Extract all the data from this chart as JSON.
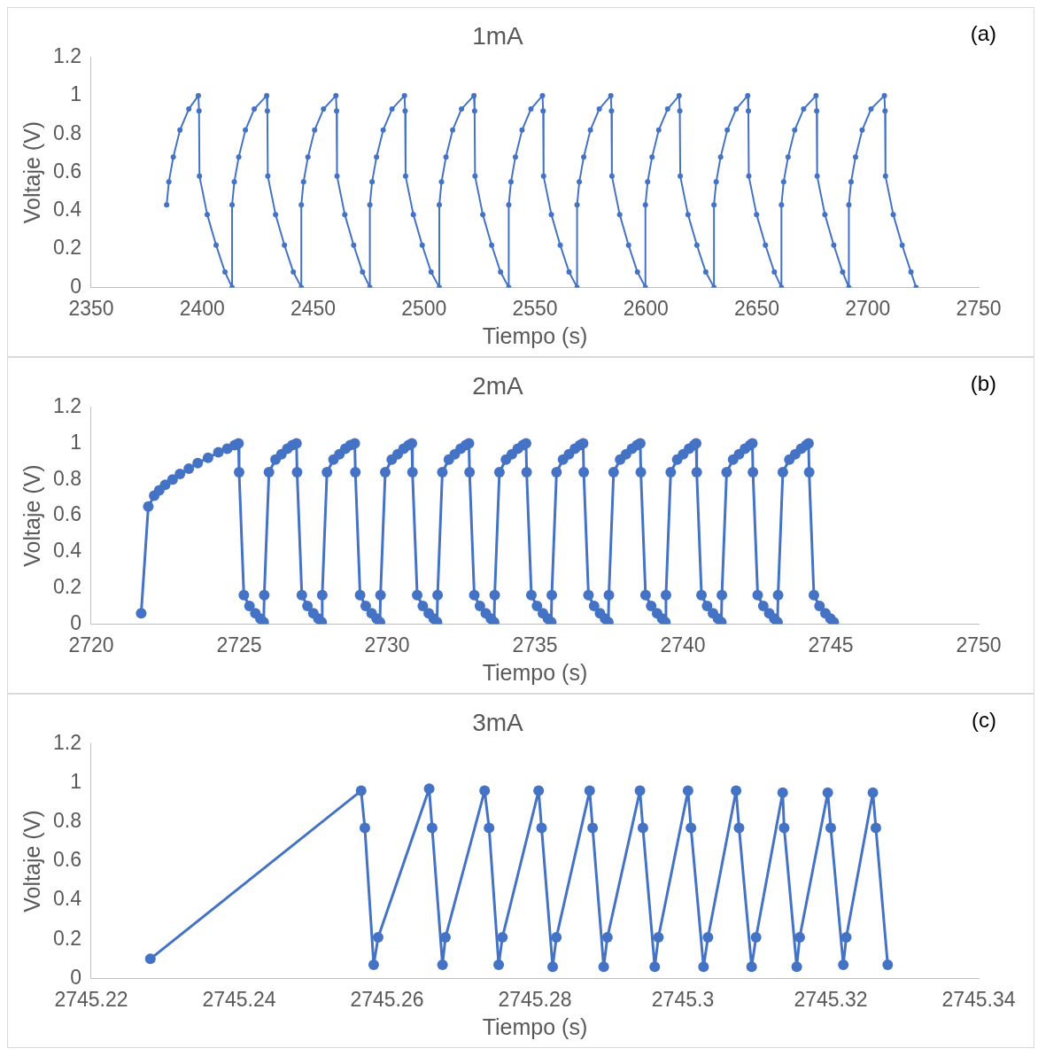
{
  "chart_data": [
    {
      "type": "line",
      "title": "1mA",
      "xlabel": "Tiempo (s)",
      "ylabel": "Voltaje (V)",
      "annotations": [
        "(a)"
      ],
      "marker": "circle",
      "line_style": "solid",
      "legend": false,
      "xlim": [
        2350,
        2750
      ],
      "xticks": [
        2350,
        2400,
        2450,
        2500,
        2550,
        2600,
        2650,
        2700,
        2750
      ],
      "ylim": [
        0,
        1.2
      ],
      "yticks": [
        0,
        0.2,
        0.4,
        0.6,
        0.8,
        1,
        1.2
      ],
      "series": [
        {
          "color": "#4472c4",
          "x": [
            2384,
            2385,
            2387,
            2390,
            2394,
            2398.3,
            2398.6,
            2398.8,
            2402.3,
            2406.3,
            2410.3,
            2413.5,
            2413.5,
            2414.5,
            2416.5,
            2419.5,
            2423.5,
            2429.1,
            2429.4,
            2429.6,
            2433.1,
            2437.1,
            2441.1,
            2444.7,
            2444.7,
            2445.7,
            2447.7,
            2450.7,
            2454.7,
            2460.3,
            2460.6,
            2460.8,
            2464.3,
            2468.3,
            2472.3,
            2475.6,
            2475.6,
            2476.6,
            2478.6,
            2481.6,
            2485.6,
            2491.2,
            2491.5,
            2491.7,
            2495.2,
            2499.2,
            2503.2,
            2506.9,
            2506.9,
            2507.9,
            2509.9,
            2512.9,
            2516.9,
            2522.5,
            2522.8,
            2523.0,
            2526.5,
            2530.5,
            2534.5,
            2538.2,
            2538.2,
            2539.2,
            2541.2,
            2544.2,
            2548.2,
            2553.4,
            2553.7,
            2553.9,
            2557.4,
            2561.4,
            2565.4,
            2569.0,
            2569.0,
            2570.0,
            2572.0,
            2575.0,
            2579.0,
            2584.2,
            2584.5,
            2584.7,
            2588.2,
            2592.2,
            2596.2,
            2599.8,
            2599.8,
            2600.8,
            2602.8,
            2605.8,
            2609.8,
            2615.0,
            2615.3,
            2615.5,
            2619.0,
            2623.0,
            2627.0,
            2630.7,
            2630.7,
            2631.7,
            2633.7,
            2636.7,
            2640.7,
            2645.9,
            2646.2,
            2646.4,
            2649.9,
            2653.9,
            2657.9,
            2661.1,
            2661.1,
            2662.1,
            2664.1,
            2667.1,
            2671.1,
            2676.7,
            2677.0,
            2677.2,
            2680.7,
            2684.7,
            2688.7,
            2691.5,
            2691.5,
            2692.5,
            2694.5,
            2697.5,
            2701.5,
            2707.5,
            2707.8,
            2708.0,
            2711.5,
            2715.5,
            2719.5,
            2721.8
          ],
          "values": [
            0.43,
            0.55,
            0.68,
            0.82,
            0.93,
            1,
            0.92,
            0.58,
            0.38,
            0.22,
            0.08,
            0,
            0.43,
            0.55,
            0.68,
            0.82,
            0.93,
            1,
            0.92,
            0.58,
            0.38,
            0.22,
            0.08,
            0,
            0.43,
            0.55,
            0.68,
            0.82,
            0.93,
            1,
            0.92,
            0.58,
            0.38,
            0.22,
            0.08,
            0,
            0.43,
            0.55,
            0.68,
            0.82,
            0.93,
            1,
            0.92,
            0.58,
            0.38,
            0.22,
            0.08,
            0,
            0.43,
            0.55,
            0.68,
            0.82,
            0.93,
            1,
            0.92,
            0.58,
            0.38,
            0.22,
            0.08,
            0,
            0.43,
            0.55,
            0.68,
            0.82,
            0.93,
            1,
            0.92,
            0.58,
            0.38,
            0.22,
            0.08,
            0,
            0.43,
            0.55,
            0.68,
            0.82,
            0.93,
            1,
            0.92,
            0.58,
            0.38,
            0.22,
            0.08,
            0,
            0.43,
            0.55,
            0.68,
            0.82,
            0.93,
            1,
            0.92,
            0.58,
            0.38,
            0.22,
            0.08,
            0,
            0.43,
            0.55,
            0.68,
            0.82,
            0.93,
            1,
            0.92,
            0.58,
            0.38,
            0.22,
            0.08,
            0,
            0.43,
            0.55,
            0.68,
            0.82,
            0.93,
            1,
            0.92,
            0.58,
            0.38,
            0.22,
            0.08,
            0,
            0.43,
            0.55,
            0.68,
            0.82,
            0.93,
            1,
            0.92,
            0.58,
            0.38,
            0.22,
            0.08,
            0
          ]
        }
      ]
    },
    {
      "type": "line",
      "title": "2mA",
      "xlabel": "Tiempo (s)",
      "ylabel": "Voltaje (V)",
      "annotations": [
        "(b)"
      ],
      "marker": "circle",
      "line_style": "solid",
      "legend": false,
      "xlim": [
        2720,
        2750
      ],
      "xticks": [
        2720,
        2725,
        2730,
        2735,
        2740,
        2745,
        2750
      ],
      "ylim": [
        0,
        1.2
      ],
      "yticks": [
        0,
        0.2,
        0.4,
        0.6,
        0.8,
        1,
        1.2
      ],
      "series": [
        {
          "color": "#4472c4",
          "x": [
            2721.69,
            2721.93,
            2722.13,
            2722.3,
            2722.5,
            2722.75,
            2723.0,
            2723.3,
            2723.6,
            2723.95,
            2724.3,
            2724.6,
            2724.85,
            2724.98,
            2725.0,
            2725.16,
            2725.35,
            2725.55,
            2725.72,
            2725.83,
            2725.85,
            2726.01,
            2726.23,
            2726.43,
            2726.63,
            2726.8,
            2726.94,
            2726.96,
            2727.12,
            2727.31,
            2727.51,
            2727.68,
            2727.79,
            2727.81,
            2727.97,
            2728.19,
            2728.39,
            2728.59,
            2728.76,
            2728.91,
            2728.93,
            2729.09,
            2729.28,
            2729.48,
            2729.65,
            2729.76,
            2729.78,
            2729.94,
            2730.16,
            2730.36,
            2730.56,
            2730.73,
            2730.84,
            2730.86,
            2731.02,
            2731.21,
            2731.41,
            2731.58,
            2731.69,
            2731.71,
            2731.87,
            2732.09,
            2732.29,
            2732.49,
            2732.66,
            2732.77,
            2732.79,
            2732.95,
            2733.14,
            2733.34,
            2733.51,
            2733.62,
            2733.64,
            2733.8,
            2734.02,
            2734.22,
            2734.42,
            2734.59,
            2734.7,
            2734.72,
            2734.88,
            2735.07,
            2735.27,
            2735.44,
            2735.55,
            2735.57,
            2735.73,
            2735.95,
            2736.15,
            2736.35,
            2736.52,
            2736.63,
            2736.65,
            2736.81,
            2737.0,
            2737.2,
            2737.37,
            2737.48,
            2737.5,
            2737.66,
            2737.88,
            2738.08,
            2738.28,
            2738.45,
            2738.56,
            2738.58,
            2738.74,
            2738.93,
            2739.13,
            2739.3,
            2739.41,
            2739.43,
            2739.59,
            2739.81,
            2740.01,
            2740.21,
            2740.38,
            2740.45,
            2740.47,
            2740.63,
            2740.82,
            2741.02,
            2741.19,
            2741.3,
            2741.32,
            2741.48,
            2741.7,
            2741.9,
            2742.1,
            2742.27,
            2742.35,
            2742.37,
            2742.53,
            2742.72,
            2742.92,
            2743.09,
            2743.2,
            2743.22,
            2743.38,
            2743.6,
            2743.8,
            2744.0,
            2744.17,
            2744.25,
            2744.27,
            2744.43,
            2744.62,
            2744.82,
            2744.99,
            2745.1
          ],
          "values": [
            0.06,
            0.65,
            0.71,
            0.74,
            0.77,
            0.8,
            0.83,
            0.86,
            0.89,
            0.92,
            0.95,
            0.97,
            0.99,
            1,
            0.84,
            0.16,
            0.1,
            0.06,
            0.03,
            0.01,
            0.16,
            0.84,
            0.91,
            0.94,
            0.97,
            0.99,
            1,
            0.84,
            0.16,
            0.1,
            0.06,
            0.03,
            0.01,
            0.16,
            0.84,
            0.91,
            0.94,
            0.97,
            0.99,
            1,
            0.84,
            0.16,
            0.1,
            0.06,
            0.03,
            0.01,
            0.16,
            0.84,
            0.91,
            0.94,
            0.97,
            0.99,
            1,
            0.84,
            0.16,
            0.1,
            0.06,
            0.03,
            0.01,
            0.16,
            0.84,
            0.91,
            0.94,
            0.97,
            0.99,
            1,
            0.84,
            0.16,
            0.1,
            0.06,
            0.03,
            0.01,
            0.16,
            0.84,
            0.91,
            0.94,
            0.97,
            0.99,
            1,
            0.84,
            0.16,
            0.1,
            0.06,
            0.03,
            0.01,
            0.16,
            0.84,
            0.91,
            0.94,
            0.97,
            0.99,
            1,
            0.84,
            0.16,
            0.1,
            0.06,
            0.03,
            0.01,
            0.16,
            0.84,
            0.91,
            0.94,
            0.97,
            0.99,
            1,
            0.84,
            0.16,
            0.1,
            0.06,
            0.03,
            0.01,
            0.16,
            0.84,
            0.91,
            0.94,
            0.97,
            0.99,
            1,
            0.84,
            0.16,
            0.1,
            0.06,
            0.03,
            0.01,
            0.16,
            0.84,
            0.91,
            0.94,
            0.97,
            0.99,
            1,
            0.84,
            0.16,
            0.1,
            0.06,
            0.03,
            0.01,
            0.16,
            0.84,
            0.91,
            0.94,
            0.97,
            0.99,
            1,
            0.84,
            0.16,
            0.1,
            0.06,
            0.03,
            0.01
          ]
        }
      ]
    },
    {
      "type": "line",
      "title": "3mA",
      "xlabel": "Tiempo (s)",
      "ylabel": "Voltaje (V)",
      "annotations": [
        "(c)"
      ],
      "marker": "circle",
      "line_style": "solid",
      "legend": false,
      "xlim": [
        2745.22,
        2745.34
      ],
      "xticks": [
        2745.22,
        2745.24,
        2745.26,
        2745.28,
        2745.3,
        2745.32,
        2745.34
      ],
      "ylim": [
        0,
        1.2
      ],
      "yticks": [
        0,
        0.2,
        0.4,
        0.6,
        0.8,
        1,
        1.2
      ],
      "series": [
        {
          "color": "#4472c4",
          "x": [
            2745.228,
            2745.2565,
            2745.257,
            2745.2582,
            2745.2588,
            2745.2657,
            2745.2661,
            2745.2675,
            2745.2679,
            2745.2732,
            2745.2738,
            2745.2751,
            2745.2756,
            2745.2805,
            2745.2809,
            2745.2824,
            2745.2829,
            2745.2874,
            2745.2878,
            2745.2893,
            2745.2898,
            2745.2942,
            2745.2946,
            2745.2962,
            2745.2967,
            2745.3007,
            2745.3011,
            2745.3028,
            2745.3034,
            2745.3072,
            2745.3076,
            2745.3093,
            2745.3099,
            2745.3135,
            2745.3137,
            2745.3154,
            2745.3158,
            2745.3196,
            2745.32,
            2745.3217,
            2745.3221,
            2745.3257,
            2745.3261,
            2745.3277
          ],
          "values": [
            0.1,
            0.96,
            0.77,
            0.07,
            0.21,
            0.97,
            0.77,
            0.07,
            0.21,
            0.96,
            0.77,
            0.07,
            0.21,
            0.96,
            0.77,
            0.06,
            0.21,
            0.96,
            0.77,
            0.06,
            0.21,
            0.96,
            0.77,
            0.06,
            0.21,
            0.96,
            0.77,
            0.06,
            0.21,
            0.96,
            0.77,
            0.06,
            0.21,
            0.95,
            0.77,
            0.06,
            0.21,
            0.95,
            0.77,
            0.07,
            0.21,
            0.95,
            0.77,
            0.07
          ]
        }
      ]
    }
  ]
}
